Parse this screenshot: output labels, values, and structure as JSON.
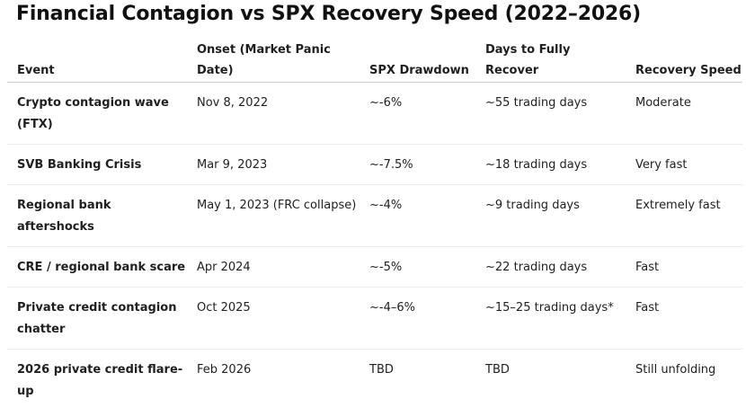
{
  "title": "Financial Contagion vs SPX Recovery Speed (2022–2026)",
  "table": {
    "headers": [
      "Event",
      "Onset (Market Panic Date)",
      "SPX Drawdown",
      "Days to Fully Recover",
      "Recovery Speed"
    ],
    "rows": [
      [
        "Crypto contagion wave (FTX)",
        "Nov 8, 2022",
        "~-6%",
        "~55 trading days",
        "Moderate"
      ],
      [
        "SVB Banking Crisis",
        "Mar 9, 2023",
        "~-7.5%",
        "~18 trading days",
        "Very fast"
      ],
      [
        "Regional bank aftershocks",
        "May 1, 2023 (FRC collapse)",
        "~-4%",
        "~9 trading days",
        "Extremely fast"
      ],
      [
        "CRE / regional bank scare",
        "Apr 2024",
        "~-5%",
        "~22 trading days",
        "Fast"
      ],
      [
        "Private credit contagion chatter",
        "Oct 2025",
        "~-4–6%",
        "~15–25 trading days*",
        "Fast"
      ],
      [
        "2026 private credit flare-up",
        "Feb 2026",
        "TBD",
        "TBD",
        "Still unfolding"
      ]
    ]
  }
}
